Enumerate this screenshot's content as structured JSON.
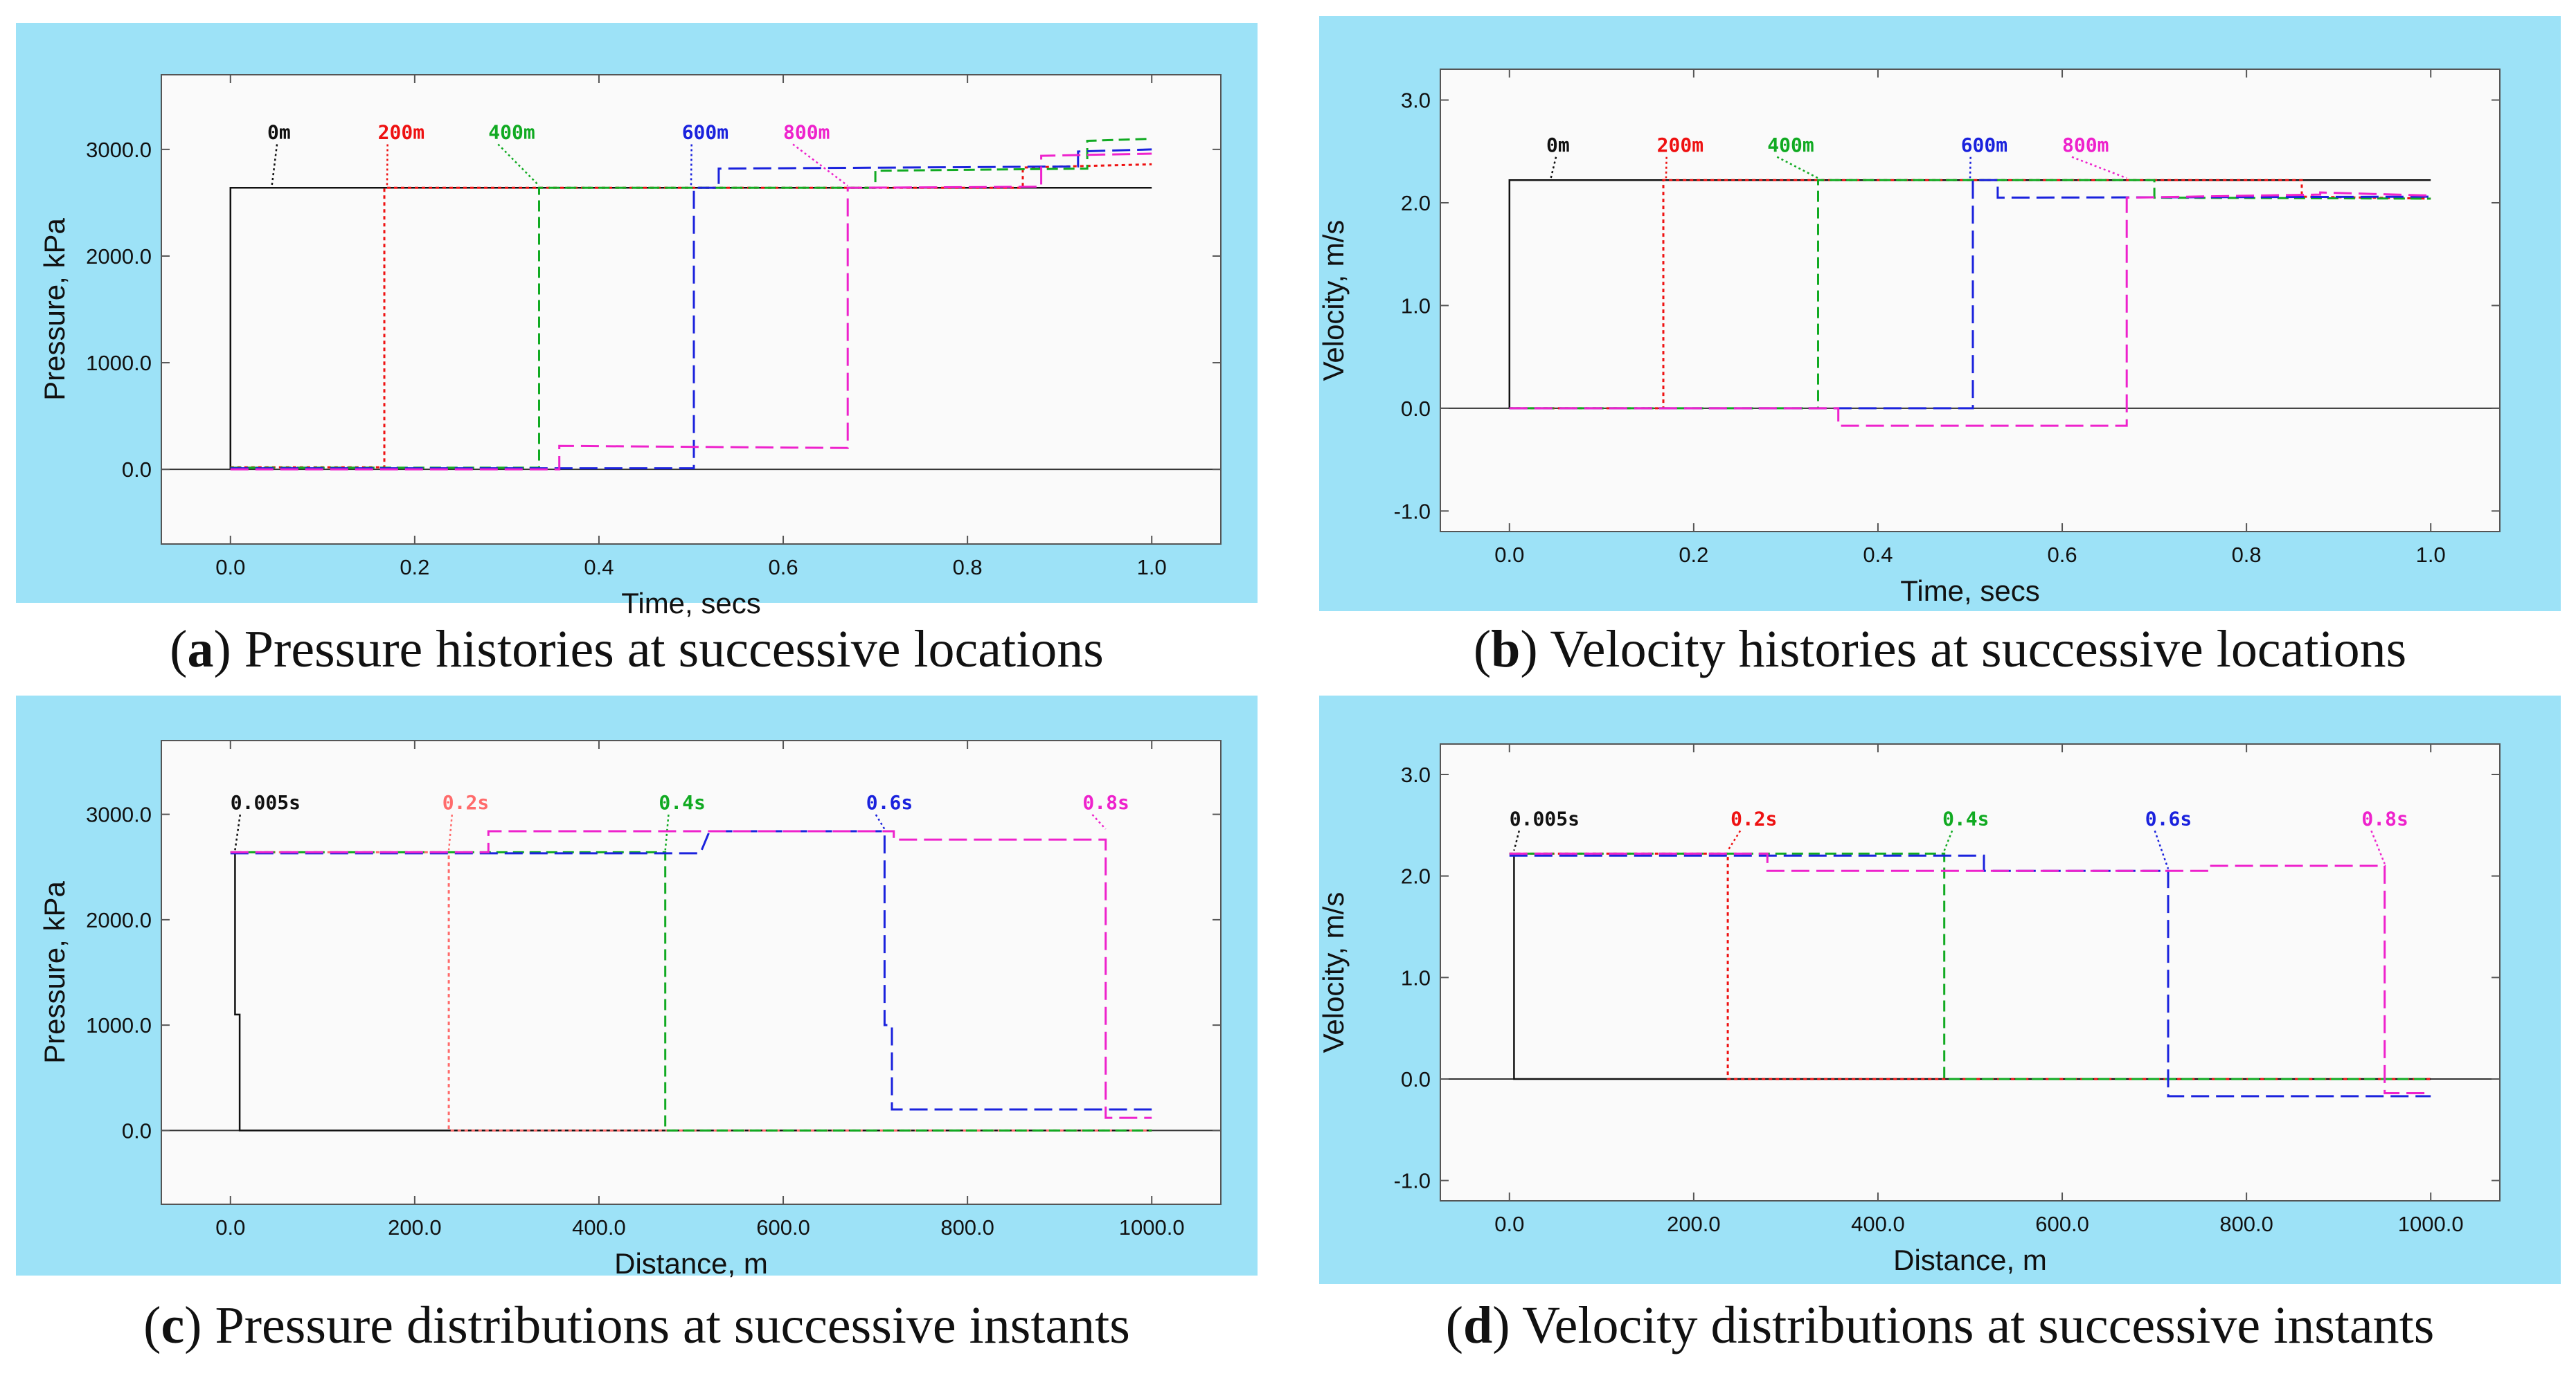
{
  "captions": [
    {
      "letter": "a",
      "text": "Pressure histories at successive locations"
    },
    {
      "letter": "b",
      "text": "Velocity histories at successive locations"
    },
    {
      "letter": "c",
      "text": "Pressure distributions at successive instants"
    },
    {
      "letter": "d",
      "text": "Velocity distributions at successive instants"
    }
  ],
  "chart_data": [
    {
      "id": "a",
      "type": "line",
      "xlabel": "Time, secs",
      "ylabel": "Pressure, kPa",
      "xlim": [
        -0.075,
        1.075
      ],
      "ylim": [
        -700,
        3700
      ],
      "xticks": [
        0.0,
        0.2,
        0.4,
        0.6,
        0.8,
        1.0
      ],
      "xtick_labels": [
        "0.0",
        "0.2",
        "0.4",
        "0.6",
        "0.8",
        "1.0"
      ],
      "yticks": [
        0,
        1000,
        2000,
        3000
      ],
      "ytick_labels": [
        "0.0",
        "1000.0",
        "2000.0",
        "3000.0"
      ],
      "baseline": 0,
      "series": [
        {
          "name": "0m",
          "color": "#111111",
          "dash": "solid",
          "x": [
            0.0,
            0.0,
            1.0
          ],
          "y": [
            0,
            2640,
            2640
          ],
          "label_x": 0.04,
          "label_y": 3100,
          "arrow_x": 0.045,
          "arrow_y": 2660
        },
        {
          "name": "200m",
          "color": "#ee1111",
          "dash": "dot",
          "x": [
            0.0,
            0.167,
            0.167,
            0.86,
            0.86,
            1.0
          ],
          "y": [
            20,
            20,
            2640,
            2640,
            2830,
            2860
          ],
          "label_x": 0.16,
          "label_y": 3100,
          "arrow_x": 0.17,
          "arrow_y": 2660
        },
        {
          "name": "400m",
          "color": "#11aa22",
          "dash": "dash",
          "x": [
            0.0,
            0.335,
            0.335,
            0.7,
            0.7,
            0.93,
            0.93,
            1.0
          ],
          "y": [
            15,
            15,
            2640,
            2640,
            2800,
            2820,
            3080,
            3100
          ],
          "label_x": 0.28,
          "label_y": 3100,
          "arrow_x": 0.335,
          "arrow_y": 2660
        },
        {
          "name": "600m",
          "color": "#1a22dd",
          "dash": "longdash",
          "x": [
            0.0,
            0.503,
            0.503,
            0.53,
            0.53,
            0.92,
            0.92,
            1.0
          ],
          "y": [
            10,
            10,
            2640,
            2640,
            2820,
            2840,
            2980,
            3000
          ],
          "label_x": 0.49,
          "label_y": 3100,
          "arrow_x": 0.5,
          "arrow_y": 2660
        },
        {
          "name": "800m",
          "color": "#ee22cc",
          "dash": "longdash",
          "x": [
            0.0,
            0.357,
            0.357,
            0.67,
            0.67,
            0.88,
            0.88,
            1.0
          ],
          "y": [
            0,
            0,
            220,
            200,
            2640,
            2650,
            2940,
            2960
          ],
          "label_x": 0.6,
          "label_y": 3100,
          "arrow_x": 0.67,
          "arrow_y": 2660
        }
      ]
    },
    {
      "id": "b",
      "type": "line",
      "xlabel": "Time, secs",
      "ylabel": "Velocity, m/s",
      "xlim": [
        -0.075,
        1.075
      ],
      "ylim": [
        -1.2,
        3.3
      ],
      "xticks": [
        0.0,
        0.2,
        0.4,
        0.6,
        0.8,
        1.0
      ],
      "xtick_labels": [
        "0.0",
        "0.2",
        "0.4",
        "0.6",
        "0.8",
        "1.0"
      ],
      "yticks": [
        -1.0,
        0.0,
        1.0,
        2.0,
        3.0
      ],
      "ytick_labels": [
        "-1.0",
        "0.0",
        "1.0",
        "2.0",
        "3.0"
      ],
      "baseline": 0,
      "series": [
        {
          "name": "0m",
          "color": "#111111",
          "dash": "solid",
          "x": [
            0.0,
            0.0,
            1.0
          ],
          "y": [
            0,
            2.22,
            2.22
          ],
          "label_x": 0.04,
          "label_y": 2.5,
          "arrow_x": 0.045,
          "arrow_y": 2.24
        },
        {
          "name": "200m",
          "color": "#ee1111",
          "dash": "dot",
          "x": [
            0.0,
            0.167,
            0.167,
            0.86,
            0.86,
            1.0
          ],
          "y": [
            0,
            0,
            2.22,
            2.22,
            2.06,
            2.04
          ],
          "label_x": 0.16,
          "label_y": 2.5,
          "arrow_x": 0.17,
          "arrow_y": 2.24
        },
        {
          "name": "400m",
          "color": "#11aa22",
          "dash": "dash",
          "x": [
            0.0,
            0.335,
            0.335,
            0.7,
            0.7,
            1.0
          ],
          "y": [
            0,
            0,
            2.22,
            2.22,
            2.05,
            2.04
          ],
          "label_x": 0.28,
          "label_y": 2.5,
          "arrow_x": 0.335,
          "arrow_y": 2.24
        },
        {
          "name": "600m",
          "color": "#1a22dd",
          "dash": "longdash",
          "x": [
            0.0,
            0.503,
            0.503,
            0.53,
            0.53,
            1.0
          ],
          "y": [
            0,
            0,
            2.22,
            2.22,
            2.05,
            2.06
          ],
          "label_x": 0.49,
          "label_y": 2.5,
          "arrow_x": 0.5,
          "arrow_y": 2.24
        },
        {
          "name": "800m",
          "color": "#ee22cc",
          "dash": "longdash",
          "x": [
            0.0,
            0.357,
            0.357,
            0.67,
            0.67,
            0.88,
            0.88,
            1.0
          ],
          "y": [
            0,
            0,
            -0.17,
            -0.17,
            2.05,
            2.08,
            2.1,
            2.07
          ],
          "label_x": 0.6,
          "label_y": 2.5,
          "arrow_x": 0.67,
          "arrow_y": 2.24
        }
      ]
    },
    {
      "id": "c",
      "type": "line",
      "xlabel": "Distance, m",
      "ylabel": "Pressure, kPa",
      "xlim": [
        -75,
        1075
      ],
      "ylim": [
        -700,
        3700
      ],
      "xticks": [
        0,
        200,
        400,
        600,
        800,
        1000
      ],
      "xtick_labels": [
        "0.0",
        "200.0",
        "400.0",
        "600.0",
        "800.0",
        "1000.0"
      ],
      "yticks": [
        0,
        1000,
        2000,
        3000
      ],
      "ytick_labels": [
        "0.0",
        "1000.0",
        "2000.0",
        "3000.0"
      ],
      "baseline": 0,
      "series": [
        {
          "name": "0.005s",
          "color": "#111111",
          "dash": "solid",
          "x": [
            0,
            5,
            5,
            10,
            10,
            1000
          ],
          "y": [
            2640,
            2640,
            1100,
            1100,
            0,
            0
          ],
          "label_x": 0,
          "label_y": 3050,
          "arrow_x": 5,
          "arrow_y": 2660
        },
        {
          "name": "0.2s",
          "color": "#ff6b6b",
          "dash": "dot",
          "x": [
            0,
            237,
            237,
            1000
          ],
          "y": [
            2640,
            2640,
            0,
            0
          ],
          "label_x": 230,
          "label_y": 3050,
          "arrow_x": 237,
          "arrow_y": 2660
        },
        {
          "name": "0.4s",
          "color": "#11aa22",
          "dash": "dash",
          "x": [
            0,
            472,
            472,
            1000
          ],
          "y": [
            2640,
            2640,
            0,
            0
          ],
          "label_x": 465,
          "label_y": 3050,
          "arrow_x": 472,
          "arrow_y": 2660
        },
        {
          "name": "0.6s",
          "color": "#1a22dd",
          "dash": "longdash",
          "x": [
            0,
            510,
            520,
            520,
            710,
            710,
            718,
            718,
            1000
          ],
          "y": [
            2630,
            2630,
            2840,
            2840,
            2840,
            1000,
            1000,
            200,
            200
          ],
          "label_x": 690,
          "label_y": 3050,
          "arrow_x": 710,
          "arrow_y": 2860
        },
        {
          "name": "0.8s",
          "color": "#ee22cc",
          "dash": "longdash",
          "x": [
            0,
            280,
            280,
            720,
            720,
            950,
            950,
            1000
          ],
          "y": [
            2640,
            2640,
            2840,
            2840,
            2760,
            2760,
            120,
            120
          ],
          "label_x": 925,
          "label_y": 3050,
          "arrow_x": 950,
          "arrow_y": 2860
        }
      ]
    },
    {
      "id": "d",
      "type": "line",
      "xlabel": "Distance, m",
      "ylabel": "Velocity, m/s",
      "xlim": [
        -75,
        1075
      ],
      "ylim": [
        -1.2,
        3.3
      ],
      "xticks": [
        0,
        200,
        400,
        600,
        800,
        1000
      ],
      "xtick_labels": [
        "0.0",
        "200.0",
        "400.0",
        "600.0",
        "800.0",
        "1000.0"
      ],
      "yticks": [
        -1.0,
        0.0,
        1.0,
        2.0,
        3.0
      ],
      "ytick_labels": [
        "-1.0",
        "0.0",
        "1.0",
        "2.0",
        "3.0"
      ],
      "baseline": 0,
      "series": [
        {
          "name": "0.005s",
          "color": "#111111",
          "dash": "solid",
          "x": [
            0,
            5,
            5,
            1000
          ],
          "y": [
            2.22,
            2.22,
            0,
            0
          ],
          "label_x": 0,
          "label_y": 2.5,
          "arrow_x": 5,
          "arrow_y": 2.25
        },
        {
          "name": "0.2s",
          "color": "#ee1111",
          "dash": "dot",
          "x": [
            0,
            237,
            237,
            1000
          ],
          "y": [
            2.22,
            2.22,
            0,
            0
          ],
          "label_x": 240,
          "label_y": 2.5,
          "arrow_x": 237,
          "arrow_y": 2.25
        },
        {
          "name": "0.4s",
          "color": "#11aa22",
          "dash": "dash",
          "x": [
            0,
            472,
            472,
            1000
          ],
          "y": [
            2.22,
            2.22,
            0,
            0
          ],
          "label_x": 470,
          "label_y": 2.5,
          "arrow_x": 472,
          "arrow_y": 2.25
        },
        {
          "name": "0.6s",
          "color": "#1a22dd",
          "dash": "longdash",
          "x": [
            0,
            515,
            515,
            715,
            715,
            1000
          ],
          "y": [
            2.2,
            2.2,
            2.05,
            2.05,
            -0.17,
            -0.17
          ],
          "label_x": 690,
          "label_y": 2.5,
          "arrow_x": 715,
          "arrow_y": 2.07
        },
        {
          "name": "0.8s",
          "color": "#ee22cc",
          "dash": "longdash",
          "x": [
            0,
            280,
            280,
            720,
            720,
            760,
            760,
            950,
            950,
            1000
          ],
          "y": [
            2.22,
            2.22,
            2.05,
            2.05,
            2.05,
            2.05,
            2.1,
            2.1,
            -0.14,
            -0.14
          ],
          "label_x": 925,
          "label_y": 2.5,
          "arrow_x": 950,
          "arrow_y": 2.12
        }
      ]
    }
  ]
}
